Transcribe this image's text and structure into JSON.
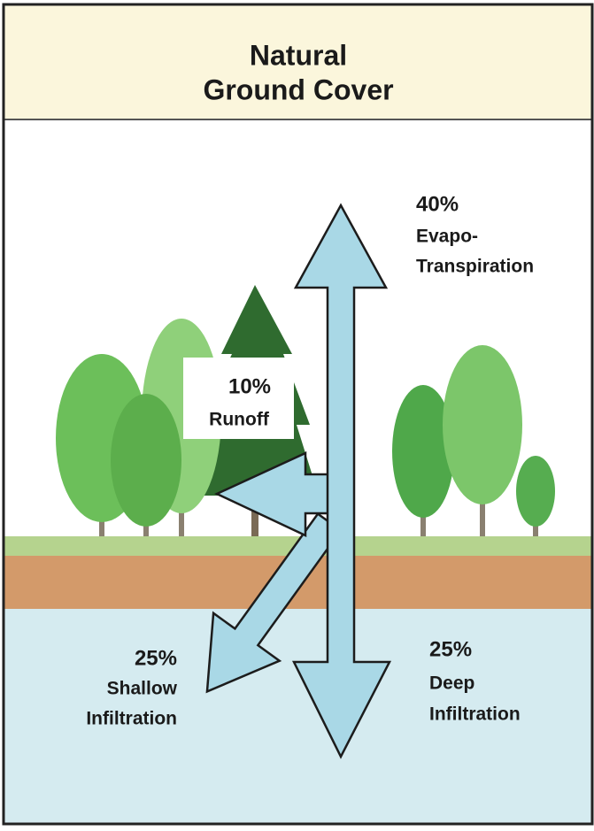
{
  "header": {
    "title_lines": [
      "Natural",
      "Ground Cover"
    ]
  },
  "flows": [
    {
      "percent": "40%",
      "label_lines": [
        "Evapo-",
        "Transpiration"
      ]
    },
    {
      "percent": "10%",
      "label_lines": [
        "Runoff"
      ]
    },
    {
      "percent": "25%",
      "label_lines": [
        "Shallow",
        "Infiltration"
      ]
    },
    {
      "percent": "25%",
      "label_lines": [
        "Deep",
        "Infiltration"
      ]
    }
  ]
}
